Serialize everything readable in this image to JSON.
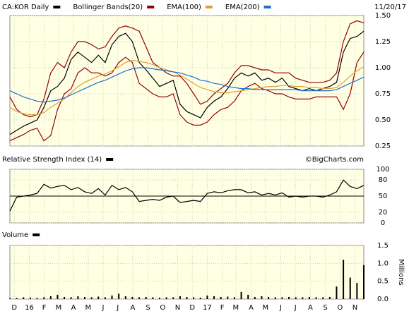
{
  "chart_data": [
    {
      "type": "line",
      "date": "11/20/17",
      "grid": true,
      "x": [
        0,
        2,
        4,
        6,
        8,
        10,
        12,
        14,
        16,
        18,
        20,
        22,
        24,
        26,
        28,
        30,
        32,
        34,
        36,
        38,
        40,
        42,
        44,
        46,
        48,
        50,
        52,
        54,
        56,
        58,
        60,
        62,
        64,
        66,
        68,
        70,
        72,
        74,
        76,
        78,
        80,
        82,
        84,
        86,
        88,
        90,
        92,
        94,
        96,
        98,
        100,
        102,
        104
      ],
      "xlim": [
        0,
        104
      ],
      "ylim": [
        0.25,
        1.5
      ],
      "yticks": [
        {
          "value": 0.25,
          "label": "0.25"
        },
        {
          "value": 0.5,
          "label": "0.50"
        },
        {
          "value": 0.75,
          "label": "0.75"
        },
        {
          "value": 1.0,
          "label": "1.00"
        },
        {
          "value": 1.25,
          "label": "1.25"
        },
        {
          "value": 1.5,
          "label": "1.50"
        }
      ],
      "series": [
        {
          "name": "CA:KOR Daily",
          "color": "#000000",
          "values": [
            0.36,
            0.4,
            0.44,
            0.47,
            0.5,
            0.62,
            0.78,
            0.82,
            0.9,
            1.08,
            1.15,
            1.1,
            1.05,
            1.12,
            1.05,
            1.22,
            1.3,
            1.33,
            1.25,
            1.05,
            0.98,
            0.9,
            0.82,
            0.85,
            0.88,
            0.65,
            0.58,
            0.55,
            0.52,
            0.62,
            0.68,
            0.72,
            0.8,
            0.9,
            0.95,
            0.92,
            0.95,
            0.88,
            0.9,
            0.86,
            0.9,
            0.82,
            0.8,
            0.78,
            0.8,
            0.78,
            0.8,
            0.82,
            0.86,
            1.15,
            1.28,
            1.3,
            1.35
          ]
        },
        {
          "name": "Bollinger Bands(20)",
          "color": "#990000",
          "values": [
            0.72,
            0.6,
            0.55,
            0.53,
            0.55,
            0.7,
            0.95,
            1.05,
            1.0,
            1.15,
            1.25,
            1.25,
            1.22,
            1.18,
            1.2,
            1.3,
            1.38,
            1.4,
            1.38,
            1.35,
            1.2,
            1.05,
            1.0,
            0.95,
            0.92,
            0.92,
            0.85,
            0.75,
            0.65,
            0.68,
            0.75,
            0.8,
            0.85,
            0.95,
            1.02,
            1.02,
            1.0,
            0.98,
            0.98,
            0.95,
            0.95,
            0.95,
            0.9,
            0.88,
            0.86,
            0.86,
            0.86,
            0.88,
            0.95,
            1.25,
            1.42,
            1.45,
            1.43
          ],
          "lower": [
            0.3,
            0.33,
            0.36,
            0.4,
            0.42,
            0.3,
            0.35,
            0.6,
            0.75,
            0.8,
            0.95,
            1.0,
            0.95,
            0.95,
            0.92,
            0.95,
            1.05,
            1.1,
            1.05,
            0.85,
            0.8,
            0.75,
            0.72,
            0.72,
            0.75,
            0.55,
            0.48,
            0.45,
            0.45,
            0.48,
            0.55,
            0.6,
            0.62,
            0.68,
            0.78,
            0.82,
            0.85,
            0.8,
            0.78,
            0.75,
            0.75,
            0.72,
            0.7,
            0.7,
            0.7,
            0.72,
            0.72,
            0.72,
            0.72,
            0.6,
            0.75,
            1.05,
            1.15
          ]
        },
        {
          "name": "EMA(100)",
          "color": "#e0a030",
          "values": [
            0.62,
            0.58,
            0.56,
            0.55,
            0.55,
            0.57,
            0.62,
            0.66,
            0.7,
            0.76,
            0.82,
            0.86,
            0.89,
            0.92,
            0.94,
            0.97,
            1.01,
            1.05,
            1.07,
            1.06,
            1.05,
            1.03,
            1.0,
            0.98,
            0.96,
            0.93,
            0.89,
            0.85,
            0.81,
            0.79,
            0.77,
            0.76,
            0.76,
            0.77,
            0.78,
            0.79,
            0.8,
            0.81,
            0.82,
            0.82,
            0.83,
            0.83,
            0.82,
            0.82,
            0.81,
            0.81,
            0.8,
            0.8,
            0.81,
            0.86,
            0.92,
            0.97,
            1.01
          ]
        },
        {
          "name": "EMA(200)",
          "color": "#1f6fd6",
          "values": [
            0.78,
            0.75,
            0.72,
            0.7,
            0.68,
            0.67,
            0.68,
            0.69,
            0.71,
            0.74,
            0.77,
            0.8,
            0.83,
            0.86,
            0.88,
            0.91,
            0.94,
            0.97,
            0.99,
            1.0,
            1.0,
            0.99,
            0.98,
            0.97,
            0.96,
            0.95,
            0.93,
            0.91,
            0.88,
            0.87,
            0.85,
            0.84,
            0.82,
            0.81,
            0.8,
            0.8,
            0.79,
            0.79,
            0.79,
            0.79,
            0.79,
            0.79,
            0.79,
            0.78,
            0.78,
            0.78,
            0.78,
            0.78,
            0.79,
            0.82,
            0.85,
            0.88,
            0.91
          ]
        }
      ]
    },
    {
      "type": "line",
      "annotation": "©BigCharts.com",
      "grid": true,
      "threshold": 50,
      "x": [
        0,
        2,
        4,
        6,
        8,
        10,
        12,
        14,
        16,
        18,
        20,
        22,
        24,
        26,
        28,
        30,
        32,
        34,
        36,
        38,
        40,
        42,
        44,
        46,
        48,
        50,
        52,
        54,
        56,
        58,
        60,
        62,
        64,
        66,
        68,
        70,
        72,
        74,
        76,
        78,
        80,
        82,
        84,
        86,
        88,
        90,
        92,
        94,
        96,
        98,
        100,
        102,
        104
      ],
      "xlim": [
        0,
        104
      ],
      "ylim": [
        0,
        100
      ],
      "yticks": [
        0,
        20,
        50,
        80,
        100
      ],
      "series": [
        {
          "name": "Relative Strength Index (14)",
          "color": "#000000",
          "values": [
            22,
            48,
            50,
            52,
            55,
            72,
            65,
            68,
            70,
            62,
            66,
            58,
            55,
            64,
            52,
            70,
            62,
            66,
            58,
            40,
            42,
            44,
            42,
            48,
            50,
            38,
            40,
            42,
            40,
            55,
            58,
            56,
            60,
            62,
            62,
            56,
            58,
            52,
            55,
            52,
            56,
            48,
            50,
            48,
            50,
            50,
            48,
            52,
            58,
            80,
            68,
            64,
            70
          ]
        }
      ]
    },
    {
      "type": "bar",
      "grid": true,
      "ylabel": "Millions",
      "x": [
        0,
        2,
        4,
        6,
        8,
        10,
        12,
        14,
        16,
        18,
        20,
        22,
        24,
        26,
        28,
        30,
        32,
        34,
        36,
        38,
        40,
        42,
        44,
        46,
        48,
        50,
        52,
        54,
        56,
        58,
        60,
        62,
        64,
        66,
        68,
        70,
        72,
        74,
        76,
        78,
        80,
        82,
        84,
        86,
        88,
        90,
        92,
        94,
        96,
        98,
        100,
        102,
        104
      ],
      "xlim": [
        0,
        104
      ],
      "ylim": [
        0,
        1.5
      ],
      "yticks": [
        {
          "value": 0,
          "label": "0.0"
        },
        {
          "value": 0.5,
          "label": "0.5"
        },
        {
          "value": 1.0,
          "label": "1.0"
        },
        {
          "value": 1.5,
          "label": "1.5"
        }
      ],
      "xticks": [
        {
          "value": 1.3,
          "label": "D"
        },
        {
          "value": 5.7,
          "label": "16"
        },
        {
          "value": 10.1,
          "label": "F"
        },
        {
          "value": 14.3,
          "label": "M"
        },
        {
          "value": 18.7,
          "label": "A"
        },
        {
          "value": 23,
          "label": "M"
        },
        {
          "value": 27.4,
          "label": "J"
        },
        {
          "value": 31.7,
          "label": "J"
        },
        {
          "value": 36.1,
          "label": "A"
        },
        {
          "value": 40.6,
          "label": "S"
        },
        {
          "value": 44.9,
          "label": "O"
        },
        {
          "value": 49.3,
          "label": "N"
        },
        {
          "value": 53.6,
          "label": "D"
        },
        {
          "value": 58,
          "label": "17"
        },
        {
          "value": 62.4,
          "label": "F"
        },
        {
          "value": 66.4,
          "label": "M"
        },
        {
          "value": 70.9,
          "label": "A"
        },
        {
          "value": 75.1,
          "label": "M"
        },
        {
          "value": 79.6,
          "label": "J"
        },
        {
          "value": 83.9,
          "label": "J"
        },
        {
          "value": 88.3,
          "label": "A"
        },
        {
          "value": 92.7,
          "label": "S"
        },
        {
          "value": 97,
          "label": "O"
        },
        {
          "value": 101.4,
          "label": "N"
        }
      ],
      "series": [
        {
          "name": "Volume",
          "color": "#000000",
          "values": [
            0.02,
            0.03,
            0.05,
            0.04,
            0.03,
            0.05,
            0.08,
            0.12,
            0.06,
            0.05,
            0.08,
            0.06,
            0.05,
            0.07,
            0.05,
            0.1,
            0.15,
            0.08,
            0.06,
            0.05,
            0.06,
            0.05,
            0.04,
            0.05,
            0.05,
            0.08,
            0.06,
            0.05,
            0.04,
            0.1,
            0.08,
            0.06,
            0.07,
            0.05,
            0.2,
            0.12,
            0.06,
            0.08,
            0.06,
            0.05,
            0.05,
            0.06,
            0.05,
            0.05,
            0.06,
            0.05,
            0.05,
            0.06,
            0.35,
            1.1,
            0.6,
            0.45,
            0.95
          ]
        }
      ]
    }
  ]
}
